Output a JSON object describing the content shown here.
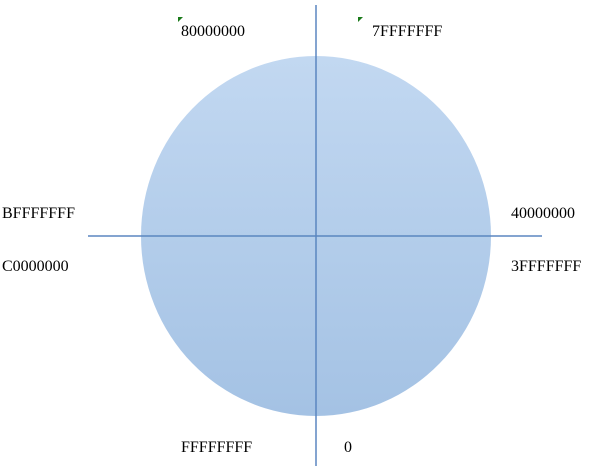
{
  "diagram": {
    "colors": {
      "circle_top": "#c2d8f1",
      "circle_bottom": "#a4c2e4",
      "axis": "#5b86c0",
      "tick_mark": "#1a7a1a"
    },
    "labels": {
      "top_left": "80000000",
      "top_right": "7FFFFFFF",
      "left_upper": "BFFFFFFF",
      "left_lower": "C0000000",
      "right_upper": "40000000",
      "right_lower": "3FFFFFFF",
      "bottom_left": "FFFFFFFF",
      "bottom_right": "0"
    }
  }
}
